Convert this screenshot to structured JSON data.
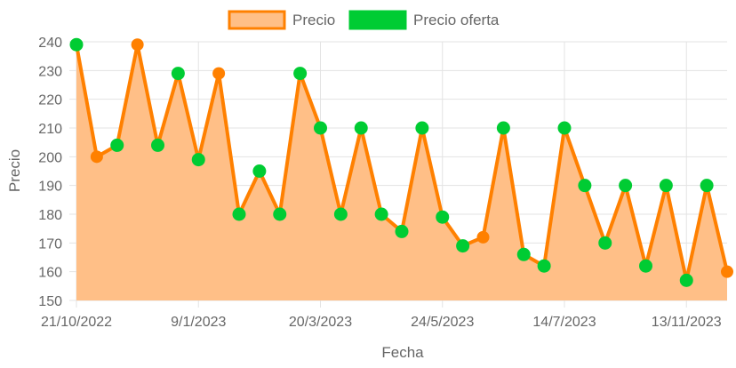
{
  "chart_data": {
    "type": "line",
    "xlabel": "Fecha",
    "ylabel": "Precio",
    "ylim": [
      150,
      240
    ],
    "y_ticks": [
      150,
      160,
      170,
      180,
      190,
      200,
      210,
      220,
      230,
      240
    ],
    "x_tick_labels": [
      "21/10/2022",
      "9/1/2023",
      "20/3/2023",
      "24/5/2023",
      "14/7/2023",
      "13/11/2023"
    ],
    "x_tick_indices": [
      0,
      6,
      12,
      18,
      24,
      30
    ],
    "legend_position": "top",
    "grid": true,
    "series": [
      {
        "name": "Precio",
        "color": "#ff8000",
        "fill": "#ffbf87",
        "values": [
          239,
          200,
          204,
          239,
          204,
          229,
          199,
          229,
          180,
          195,
          180,
          229,
          210,
          180,
          210,
          180,
          174,
          210,
          179,
          169,
          172,
          210,
          166,
          162,
          210,
          190,
          170,
          190,
          162,
          190,
          157,
          190,
          160
        ]
      },
      {
        "name": "Precio oferta",
        "color": "#00cc33",
        "points": [
          [
            0,
            239
          ],
          [
            2,
            204
          ],
          [
            4,
            204
          ],
          [
            5,
            229
          ],
          [
            6,
            199
          ],
          [
            8,
            180
          ],
          [
            9,
            195
          ],
          [
            10,
            180
          ],
          [
            11,
            229
          ],
          [
            12,
            210
          ],
          [
            13,
            180
          ],
          [
            14,
            210
          ],
          [
            15,
            180
          ],
          [
            16,
            174
          ],
          [
            17,
            210
          ],
          [
            18,
            179
          ],
          [
            19,
            169
          ],
          [
            21,
            210
          ],
          [
            22,
            166
          ],
          [
            23,
            162
          ],
          [
            24,
            210
          ],
          [
            25,
            190
          ],
          [
            26,
            170
          ],
          [
            27,
            190
          ],
          [
            28,
            162
          ],
          [
            29,
            190
          ],
          [
            30,
            157
          ],
          [
            31,
            190
          ]
        ]
      }
    ]
  }
}
